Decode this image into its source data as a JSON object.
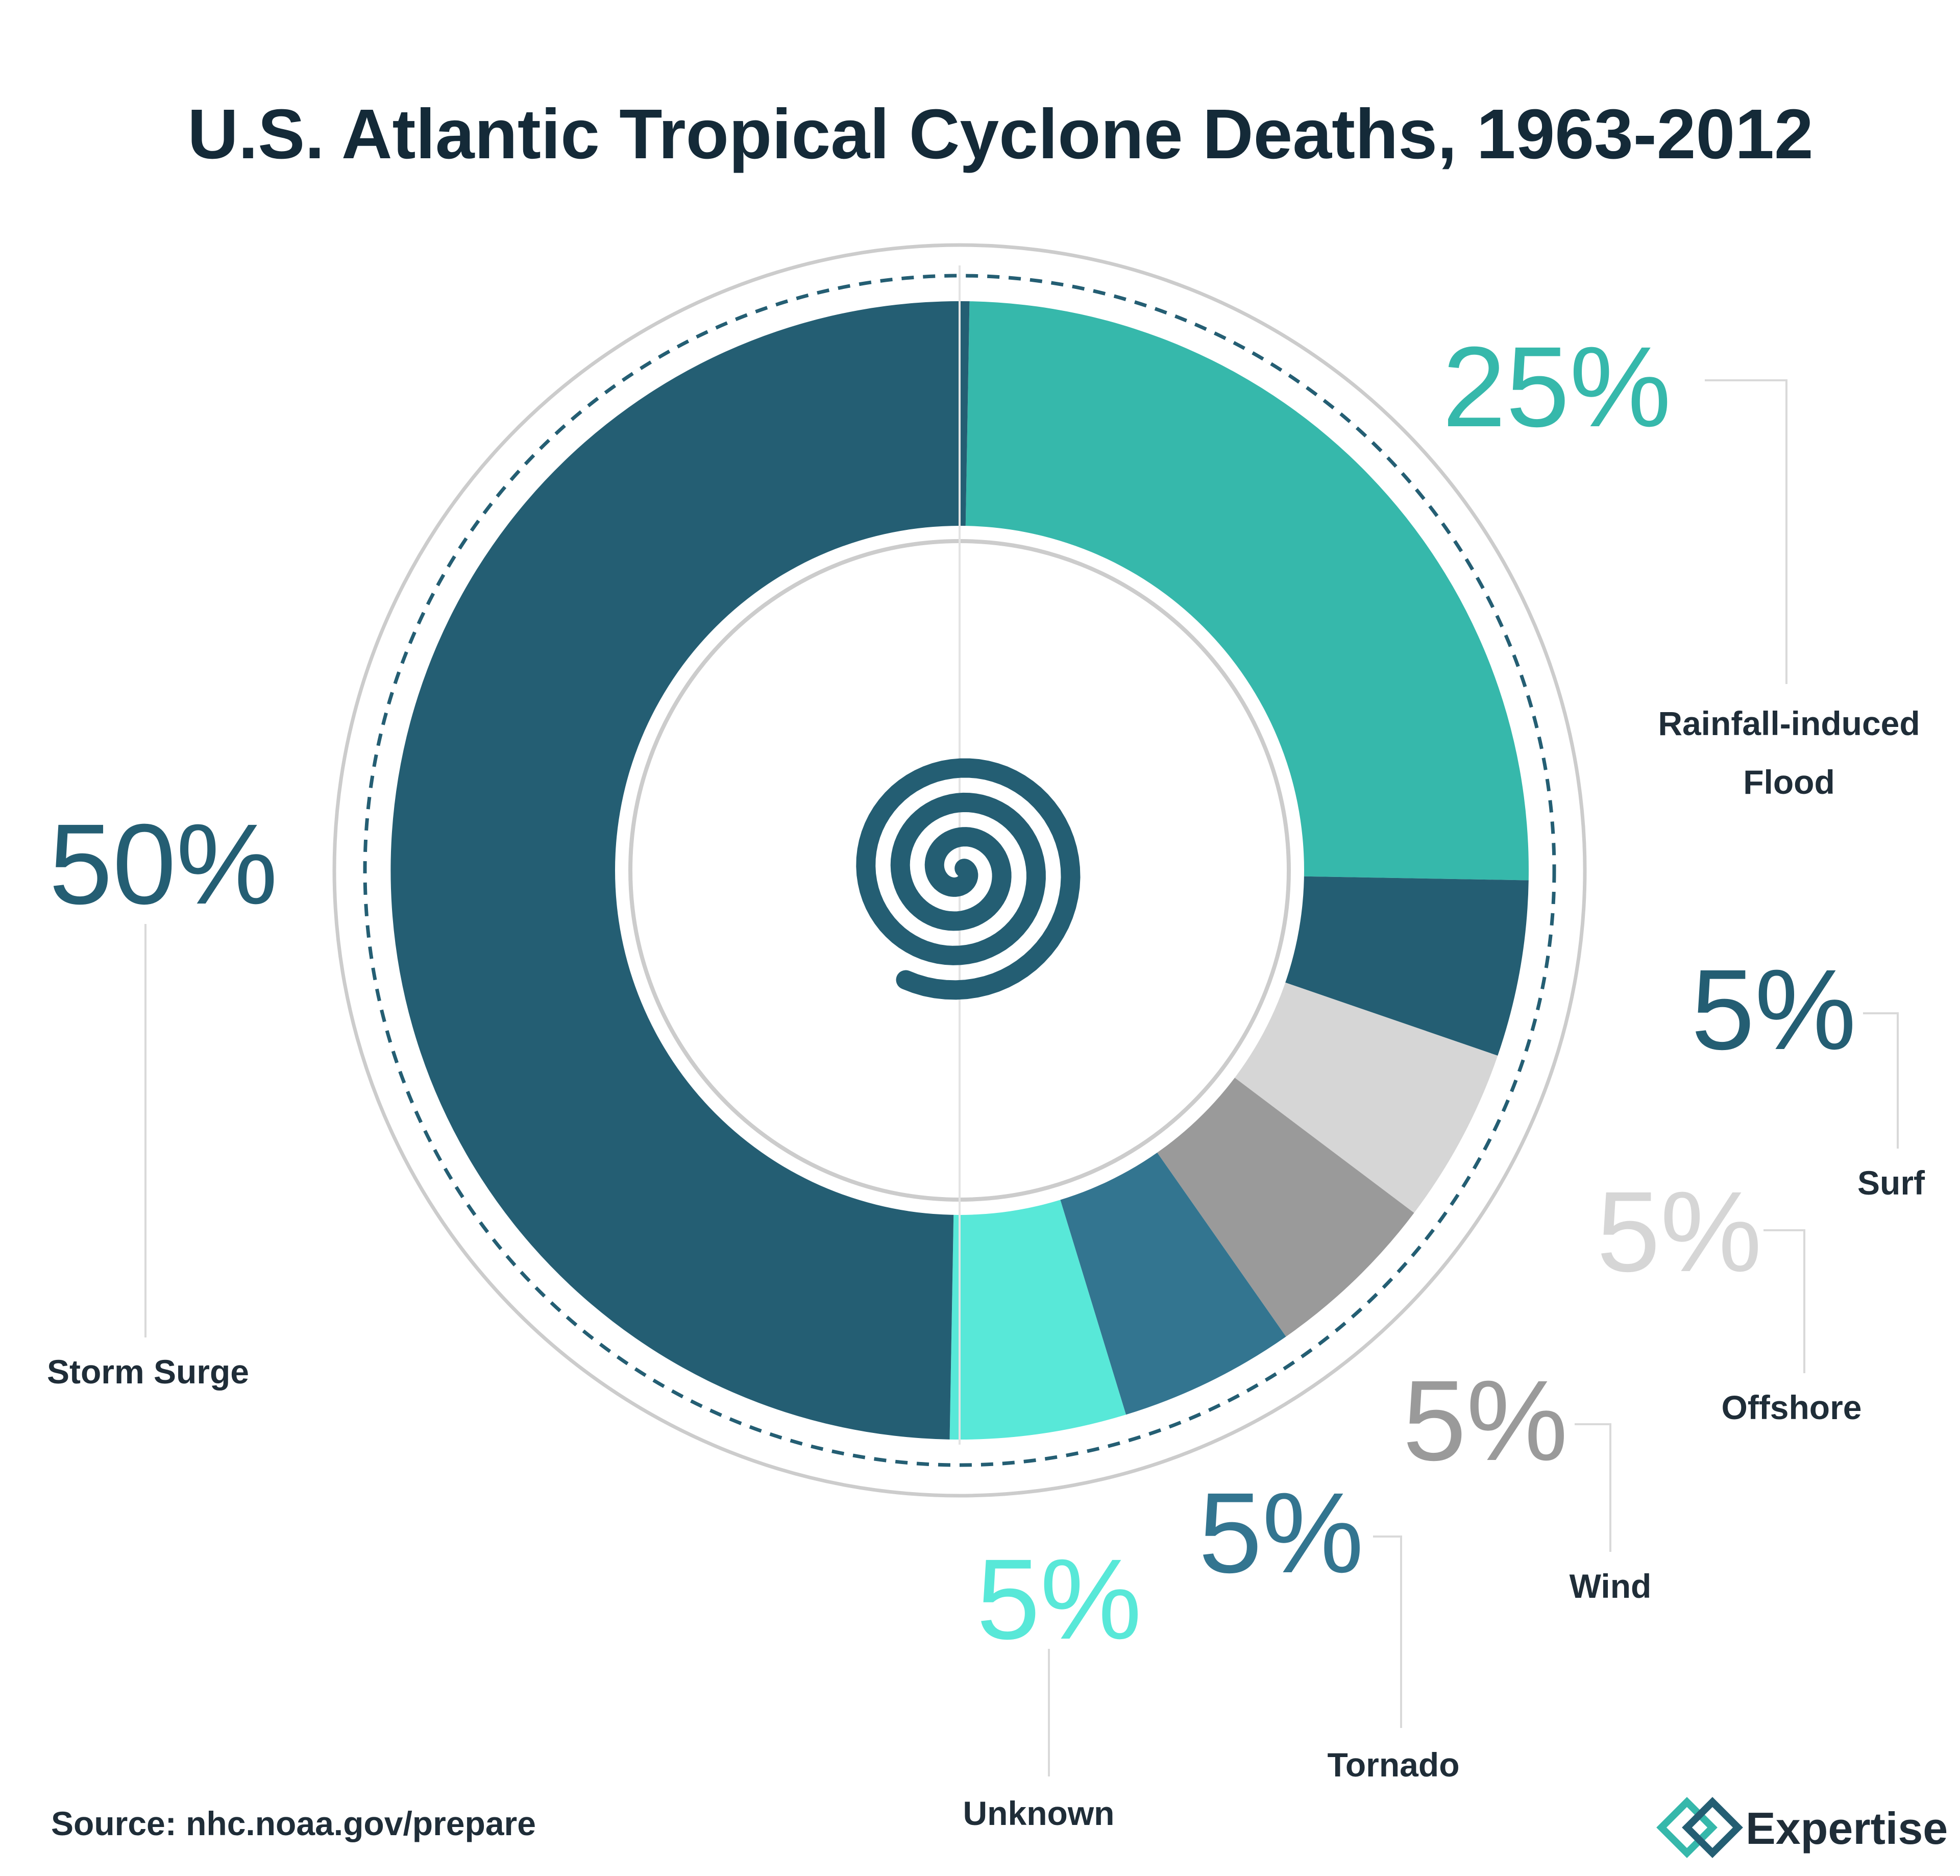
{
  "chart_data": {
    "type": "pie",
    "title": "U.S. Atlantic Tropical Cyclone Deaths, 1963-2012",
    "slices": [
      {
        "label": "Rainfall-induced Flood",
        "label_lines": [
          "Rainfall-induced",
          "Flood"
        ],
        "value": 25,
        "value_text": "25%",
        "color": "#36b8ab"
      },
      {
        "label": "Surf",
        "label_lines": [
          "Surf"
        ],
        "value": 5,
        "value_text": "5%",
        "color": "#245e73"
      },
      {
        "label": "Offshore",
        "label_lines": [
          "Offshore"
        ],
        "value": 5,
        "value_text": "5%",
        "color": "#d6d6d6"
      },
      {
        "label": "Wind",
        "label_lines": [
          "Wind"
        ],
        "value": 5,
        "value_text": "5%",
        "color": "#9a9a9a"
      },
      {
        "label": "Tornado",
        "label_lines": [
          "Tornado"
        ],
        "value": 5,
        "value_text": "5%",
        "color": "#337590"
      },
      {
        "label": "Unknown",
        "label_lines": [
          "Unknown"
        ],
        "value": 5,
        "value_text": "5%",
        "color": "#58e8d8"
      },
      {
        "label": "Storm Surge",
        "label_lines": [
          "Storm Surge"
        ],
        "value": 50,
        "value_text": "50%",
        "color": "#245e73"
      }
    ],
    "legend": "none"
  },
  "source": "Source: nhc.noaa.gov/prepare",
  "brand": {
    "name": "Expertise",
    "accent": "#36b8ab",
    "dark": "#245e73"
  },
  "center_icon": "hurricane-spiral-icon"
}
